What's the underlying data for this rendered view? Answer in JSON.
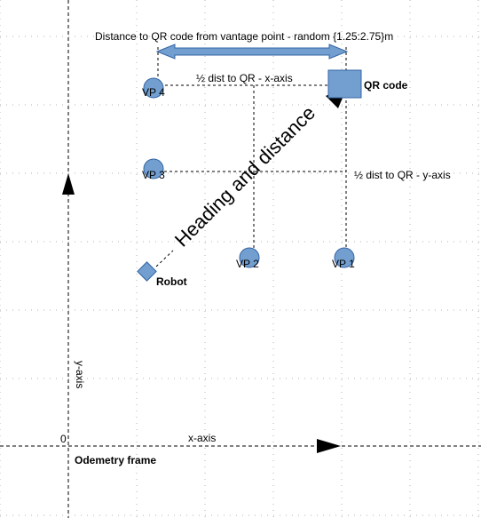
{
  "diagram": {
    "top_label": "Distance to QR code from vantage point - random {1.25:2.75}m",
    "half_x_label": "½ dist to QR - x-axis",
    "half_y_label": "½ dist to QR - y-axis",
    "heading_label": "Heading and distance",
    "qr_label": "QR code",
    "robot_label": "Robot",
    "vp1": "VP 1",
    "vp2": "VP 2",
    "vp3": "VP 3",
    "vp4": "VP 4",
    "origin": "0",
    "x_axis": "x-axis",
    "y_axis": "y-axis",
    "frame_label": "Odemetry frame"
  },
  "colors": {
    "shape_fill": "#729fcf",
    "shape_stroke": "#3465a4",
    "arrow_black": "#000000",
    "grid": "#b3b3b3"
  }
}
